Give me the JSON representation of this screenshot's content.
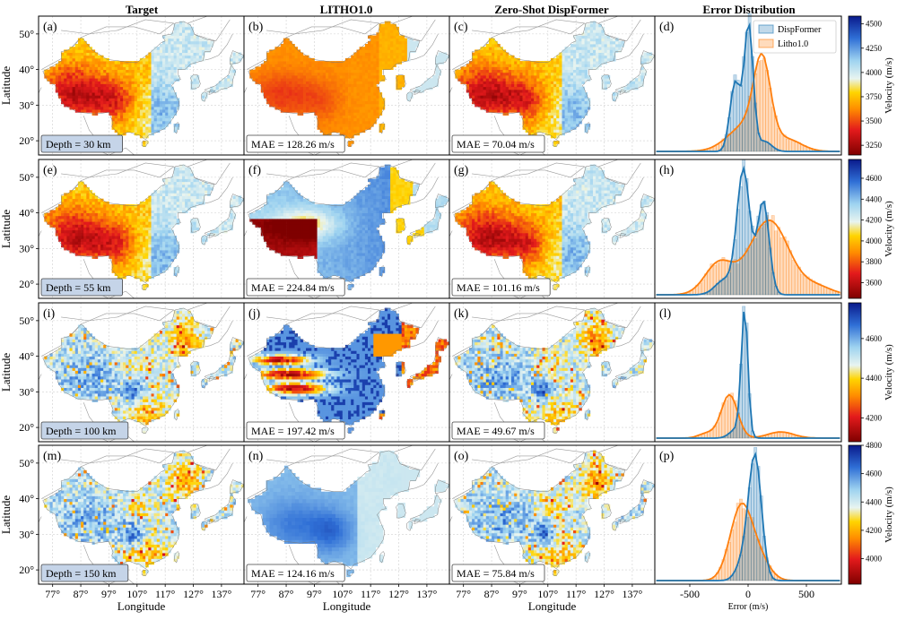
{
  "figure": {
    "column_titles": [
      "Target",
      "LITHO1.0",
      "Zero-Shot DispFormer",
      "Error Distribution"
    ]
  },
  "chart_data": [
    {
      "type": "heatmap",
      "panel_label": "(a)",
      "annotation": "Depth = 30 km",
      "ylabel": "Latitude",
      "y_ticks": [
        "20°",
        "30°",
        "40°",
        "50°"
      ],
      "palette": "target",
      "colorbar": {
        "label": "Velocity (m/s)",
        "range": [
          3150,
          4580
        ],
        "ticks": [
          3250,
          3500,
          3750,
          4000,
          4250,
          4500
        ]
      }
    },
    {
      "type": "heatmap",
      "panel_label": "(b)",
      "annotation": "MAE = 128.26 m/s",
      "palette": "litho_warm"
    },
    {
      "type": "heatmap",
      "panel_label": "(c)",
      "annotation": "MAE = 70.04 m/s",
      "palette": "target"
    },
    {
      "type": "histogram",
      "panel_label": "(d)",
      "xlim": [
        -800,
        800
      ],
      "legend": [
        "DispFormer",
        "Litho1.0"
      ],
      "series": [
        {
          "name": "DispFormer",
          "color": "#1f77b4",
          "peaks": [
            {
              "mu": -110,
              "sigma": 45,
              "w": 0.55
            },
            {
              "mu": 5,
              "sigma": 38,
              "w": 1.0
            },
            {
              "mu": 140,
              "sigma": 60,
              "w": 0.08
            }
          ]
        },
        {
          "name": "Litho1.0",
          "color": "#ff7f0e",
          "peaks": [
            {
              "mu": 120,
              "sigma": 70,
              "w": 0.6
            },
            {
              "mu": 0,
              "sigma": 160,
              "w": 0.22
            },
            {
              "mu": 350,
              "sigma": 120,
              "w": 0.08
            }
          ]
        }
      ]
    },
    {
      "type": "heatmap",
      "panel_label": "(e)",
      "annotation": "Depth = 55 km",
      "ylabel": "Latitude",
      "y_ticks": [
        "20°",
        "30°",
        "40°",
        "50°"
      ],
      "palette": "target",
      "colorbar": {
        "label": "Velocity (m/s)",
        "range": [
          3450,
          4780
        ],
        "ticks": [
          3600,
          3800,
          4000,
          4200,
          4400,
          4600
        ]
      }
    },
    {
      "type": "heatmap",
      "panel_label": "(f)",
      "annotation": "MAE = 224.84 m/s",
      "palette": "litho_blocky"
    },
    {
      "type": "heatmap",
      "panel_label": "(g)",
      "annotation": "MAE = 101.16 m/s",
      "palette": "target"
    },
    {
      "type": "histogram",
      "panel_label": "(h)",
      "xlim": [
        -800,
        800
      ],
      "series": [
        {
          "name": "DispFormer",
          "color": "#1f77b4",
          "peaks": [
            {
              "mu": -40,
              "sigma": 55,
              "w": 1.0
            },
            {
              "mu": 130,
              "sigma": 50,
              "w": 0.75
            },
            {
              "mu": -200,
              "sigma": 80,
              "w": 0.12
            }
          ]
        },
        {
          "name": "Litho1.0",
          "color": "#ff7f0e",
          "peaks": [
            {
              "mu": 180,
              "sigma": 170,
              "w": 0.6
            },
            {
              "mu": -250,
              "sigma": 120,
              "w": 0.25
            },
            {
              "mu": 600,
              "sigma": 120,
              "w": 0.06
            }
          ]
        }
      ]
    },
    {
      "type": "heatmap",
      "panel_label": "(i)",
      "annotation": "Depth = 100 km",
      "ylabel": "Latitude",
      "y_ticks": [
        "20°",
        "30°",
        "40°",
        "50°"
      ],
      "palette": "target_deep",
      "colorbar": {
        "label": "Velocity (m/s)",
        "range": [
          4080,
          4780
        ],
        "ticks": [
          4200,
          4400,
          4600
        ]
      }
    },
    {
      "type": "heatmap",
      "panel_label": "(j)",
      "annotation": "MAE = 197.42 m/s",
      "palette": "litho_dark"
    },
    {
      "type": "heatmap",
      "panel_label": "(k)",
      "annotation": "MAE = 49.67 m/s",
      "palette": "target_deep"
    },
    {
      "type": "histogram",
      "panel_label": "(l)",
      "xlim": [
        -800,
        800
      ],
      "series": [
        {
          "name": "DispFormer",
          "color": "#1f77b4",
          "peaks": [
            {
              "mu": -30,
              "sigma": 28,
              "w": 1.0
            },
            {
              "mu": -90,
              "sigma": 60,
              "w": 0.08
            }
          ]
        },
        {
          "name": "Litho1.0",
          "color": "#ff7f0e",
          "peaks": [
            {
              "mu": -160,
              "sigma": 70,
              "w": 0.35
            },
            {
              "mu": 280,
              "sigma": 110,
              "w": 0.05
            },
            {
              "mu": -350,
              "sigma": 70,
              "w": 0.04
            }
          ]
        }
      ]
    },
    {
      "type": "heatmap",
      "panel_label": "(m)",
      "annotation": "Depth = 150 km",
      "ylabel": "Latitude",
      "xlabel": "Longitude",
      "y_ticks": [
        "20°",
        "30°",
        "40°",
        "50°"
      ],
      "x_ticks": [
        "77°",
        "87°",
        "97°",
        "107°",
        "117°",
        "127°",
        "137°"
      ],
      "palette": "target_deep",
      "colorbar": {
        "label": "Velocity (m/s)",
        "range": [
          3820,
          4800
        ],
        "ticks": [
          4000,
          4200,
          4400,
          4600,
          4800
        ]
      }
    },
    {
      "type": "heatmap",
      "panel_label": "(n)",
      "annotation": "MAE = 124.16 m/s",
      "palette": "litho_smooth",
      "xlabel": "Longitude",
      "x_ticks": [
        "77°",
        "87°",
        "97°",
        "107°",
        "117°",
        "127°",
        "137°"
      ]
    },
    {
      "type": "heatmap",
      "panel_label": "(o)",
      "annotation": "MAE = 75.84 m/s",
      "palette": "target_deep",
      "xlabel": "Longitude",
      "x_ticks": [
        "77°",
        "87°",
        "97°",
        "107°",
        "117°",
        "127°",
        "137°"
      ]
    },
    {
      "type": "histogram",
      "panel_label": "(p)",
      "xlim": [
        -800,
        800
      ],
      "xlabel": "Error (m/s)",
      "x_ticks": [
        -500,
        0,
        500
      ],
      "series": [
        {
          "name": "DispFormer",
          "color": "#1f77b4",
          "peaks": [
            {
              "mu": 60,
              "sigma": 55,
              "w": 1.0
            },
            {
              "mu": -40,
              "sigma": 60,
              "w": 0.15
            }
          ]
        },
        {
          "name": "Litho1.0",
          "color": "#ff7f0e",
          "peaks": [
            {
              "mu": -60,
              "sigma": 95,
              "w": 0.6
            },
            {
              "mu": 100,
              "sigma": 90,
              "w": 0.15
            }
          ]
        }
      ]
    }
  ]
}
